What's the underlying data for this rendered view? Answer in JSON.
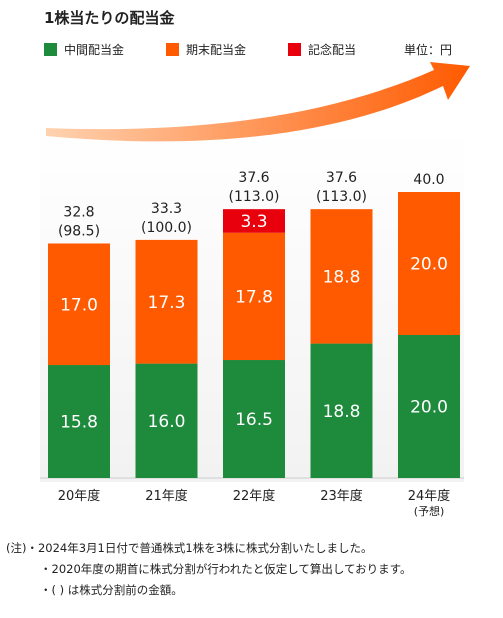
{
  "chart_data": {
    "type": "bar",
    "stacked": true,
    "title": "1株当たりの配当金",
    "unit_label": "単位：円",
    "categories": [
      "20年度",
      "21年度",
      "22年度",
      "23年度",
      "24年度"
    ],
    "category_notes": [
      "",
      "",
      "",
      "",
      "(予想)"
    ],
    "series": [
      {
        "name": "中間配当金",
        "color": "#1e8a3c",
        "values": [
          15.8,
          16.0,
          16.5,
          18.8,
          20.0
        ],
        "labels": [
          "15.8",
          "16.0",
          "16.5",
          "18.8",
          "20.0"
        ]
      },
      {
        "name": "期末配当金",
        "color": "#ff5a00",
        "values": [
          17.0,
          17.3,
          17.8,
          18.8,
          20.0
        ],
        "labels": [
          "17.0",
          "17.3",
          "17.8",
          "18.8",
          "20.0"
        ]
      },
      {
        "name": "記念配当",
        "color": "#e8000d",
        "values": [
          0,
          0,
          3.3,
          0,
          0
        ],
        "labels": [
          "",
          "",
          "3.3",
          "",
          ""
        ]
      }
    ],
    "totals": [
      "32.8",
      "33.3",
      "37.6",
      "37.6",
      "40.0"
    ],
    "totals_pre_split": [
      "(98.5)",
      "(100.0)",
      "(113.0)",
      "(113.0)",
      ""
    ],
    "ylim": [
      0,
      42
    ],
    "legend_position": "top",
    "grid": false
  },
  "notes": [
    "(注)・2024年3月1日付で普通株式1株を3株に株式分割いたしました。",
    "・2020年度の期首に株式分割が行われたと仮定して算出しております。",
    "・( ) は株式分割前の金額。"
  ]
}
